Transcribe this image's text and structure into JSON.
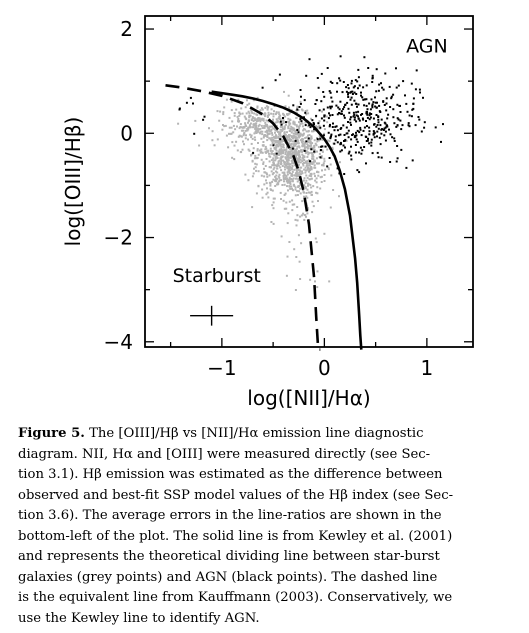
{
  "chart_data": {
    "type": "scatter",
    "xlabel": "log([NII]/Hα)",
    "ylabel": "log([OIII]/Hβ)",
    "xlim": [
      -1.75,
      1.45
    ],
    "ylim": [
      -4.1,
      2.25
    ],
    "xticks": [
      {
        "value": -1,
        "label": "−1"
      },
      {
        "value": 0,
        "label": "0"
      },
      {
        "value": 1,
        "label": "1"
      }
    ],
    "yticks": [
      {
        "value": 2,
        "label": "2"
      },
      {
        "value": 0,
        "label": "0"
      },
      {
        "value": -2,
        "label": "−2"
      },
      {
        "value": -4,
        "label": "−4"
      }
    ],
    "annotations": [
      {
        "text": "AGN",
        "x": 1.0,
        "y": 1.55
      },
      {
        "text": "Starburst",
        "x": -1.05,
        "y": -2.85
      }
    ],
    "colors": {
      "starburst_points": "#b4b4b4",
      "agn_points": "#000000",
      "lines": "#000000"
    },
    "series": [
      {
        "kind": "points",
        "color": "#b4b4b4",
        "clusters": [
          {
            "cx": -0.32,
            "cy": -0.45,
            "sx": 0.17,
            "sy": 0.38,
            "n": 900
          },
          {
            "cx": -0.6,
            "cy": 0.15,
            "sx": 0.22,
            "sy": 0.22,
            "n": 350
          },
          {
            "cx": -0.2,
            "cy": -1.4,
            "sx": 0.12,
            "sy": 0.5,
            "n": 70
          },
          {
            "cx": -0.25,
            "cy": -2.7,
            "sx": 0.1,
            "sy": 0.35,
            "n": 10
          }
        ]
      },
      {
        "kind": "points",
        "color": "#000000",
        "clusters": [
          {
            "cx": 0.3,
            "cy": 0.3,
            "sx": 0.3,
            "sy": 0.45,
            "n": 420
          },
          {
            "cx": -1.3,
            "cy": 0.5,
            "sx": 0.1,
            "sy": 0.2,
            "n": 8
          }
        ]
      },
      {
        "kind": "line",
        "style": "solid",
        "equation": "0.61/(x-0.47)+1.19",
        "x": [
          -1.1,
          -1.0,
          -0.9,
          -0.8,
          -0.7,
          -0.6,
          -0.5,
          -0.4,
          -0.3,
          -0.2,
          -0.1,
          0.0,
          0.05,
          0.1,
          0.15,
          0.2,
          0.25,
          0.3,
          0.32,
          0.34,
          0.35,
          0.36
        ],
        "y": [
          0.8,
          0.77,
          0.74,
          0.71,
          0.67,
          0.62,
          0.56,
          0.49,
          0.4,
          0.28,
          0.12,
          -0.11,
          -0.26,
          -0.44,
          -0.72,
          -1.07,
          -1.58,
          -2.4,
          -2.87,
          -3.5,
          -3.88,
          -4.38
        ]
      },
      {
        "kind": "line",
        "style": "dashed",
        "equation": "0.61/(x-0.05)+1.3",
        "x": [
          -1.55,
          -1.4,
          -1.2,
          -1.0,
          -0.8,
          -0.6,
          -0.5,
          -0.4,
          -0.3,
          -0.25,
          -0.2,
          -0.15,
          -0.1,
          -0.08,
          -0.06,
          -0.04
        ],
        "y": [
          0.92,
          0.88,
          0.81,
          0.72,
          0.58,
          0.36,
          0.19,
          -0.06,
          -0.44,
          -0.73,
          -1.14,
          -1.75,
          -2.77,
          -3.52,
          -4.25,
          -5.48
        ]
      },
      {
        "kind": "errorbar",
        "x": -1.1,
        "y": -3.5,
        "xerr": 0.21,
        "yerr": 0.19
      }
    ]
  },
  "caption": {
    "label": "Figure 5.",
    "lines": [
      " The [OIII]/Hβ vs [NII]/Hα emission line diagnostic",
      "diagram. NII, Hα and [OIII] were measured directly (see Sec-",
      "tion 3.1). Hβ emission was estimated as the difference between",
      "observed and best-fit SSP model values of the Hβ index (see Sec-",
      "tion 3.6). The average errors in the line-ratios are shown in the",
      "bottom-left of the plot. The solid line is from Kewley et al. (2001)",
      "and represents the theoretical dividing line between star-burst",
      "galaxies (grey points) and AGN (black points). The dashed line",
      "is the equivalent line from Kauffmann (2003). Conservatively, we",
      "use the Kewley line to identify AGN."
    ]
  }
}
